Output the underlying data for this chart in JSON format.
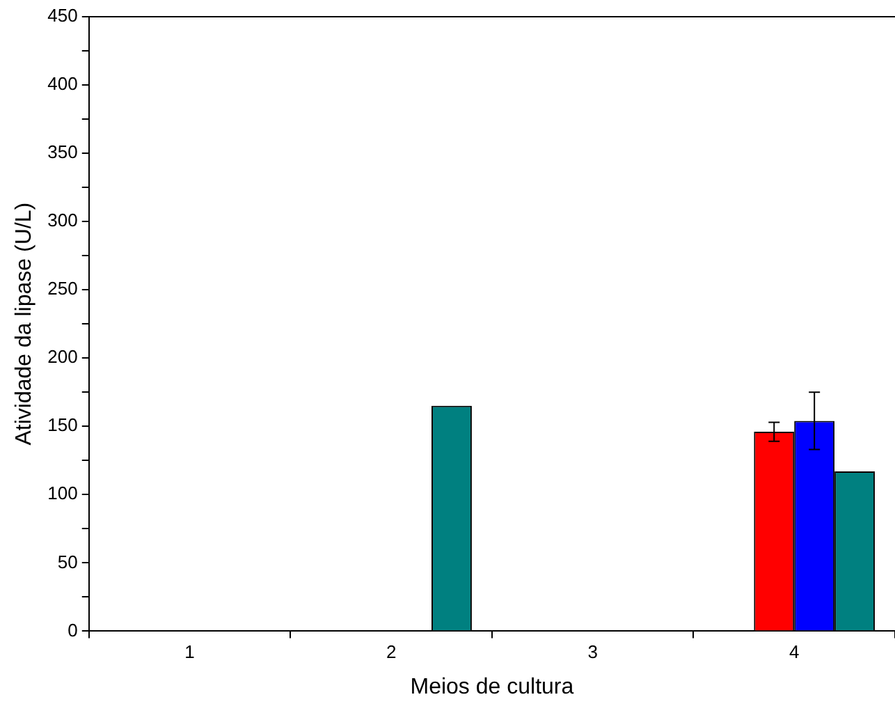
{
  "chart_data": {
    "type": "bar",
    "xlabel": "Meios de cultura",
    "ylabel": "Atividade da lipase (U/L)",
    "categories": [
      "1",
      "2",
      "3",
      "4"
    ],
    "series": [
      {
        "color": "#ff0000",
        "values": [
          null,
          null,
          null,
          146
        ],
        "errors": [
          null,
          null,
          null,
          7
        ]
      },
      {
        "color": "#0000ff",
        "values": [
          null,
          null,
          null,
          154
        ],
        "errors": [
          null,
          null,
          null,
          21
        ]
      },
      {
        "color": "#008080",
        "values": [
          null,
          165,
          null,
          117
        ]
      }
    ],
    "ylim": [
      0,
      450
    ],
    "yticks": [
      0,
      {
        "value": 25,
        "label": null
      },
      50,
      {
        "value": 75,
        "label": null
      },
      100,
      {
        "value": 125,
        "label": null
      },
      150,
      {
        "value": 175,
        "label": null
      },
      200,
      {
        "value": 225,
        "label": null
      },
      250,
      {
        "value": 275,
        "label": null
      },
      300,
      {
        "value": 325,
        "label": null
      },
      350,
      {
        "value": 375,
        "label": null
      },
      400,
      {
        "value": 425,
        "label": null
      },
      450
    ],
    "grid": false,
    "legend": false
  }
}
